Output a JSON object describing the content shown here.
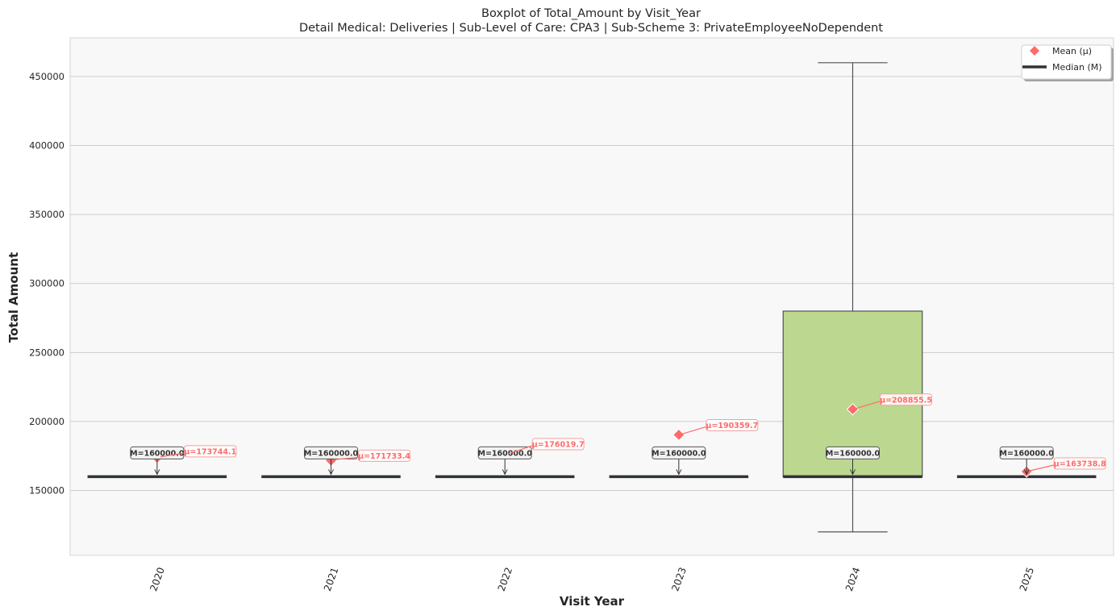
{
  "chart_data": {
    "type": "box",
    "title": "Boxplot of Total_Amount by Visit_Year",
    "subtitle": "Detail Medical: Deliveries | Sub-Level of Care: CPA3 | Sub-Scheme 3: PrivateEmployeeNoDependent",
    "xlabel": "Visit Year",
    "ylabel": "Total Amount",
    "ylim": [
      103000,
      478000
    ],
    "yticks": [
      150000,
      200000,
      250000,
      300000,
      350000,
      400000,
      450000
    ],
    "grid": true,
    "legend_position": "top-right",
    "legend": [
      {
        "label": "Mean (μ)",
        "marker": "diamond",
        "color": "#ff6b6b"
      },
      {
        "label": "Median (M)",
        "marker": "line",
        "color": "#2f3335"
      }
    ],
    "categories": [
      "2020",
      "2021",
      "2022",
      "2023",
      "2024",
      "2025"
    ],
    "boxes": [
      {
        "category": "2020",
        "whisker_low": 160000,
        "q1": 160000,
        "median": 160000,
        "q3": 160000,
        "whisker_high": 160000,
        "mean": 173744.1,
        "median_label": "M=160000.0",
        "mean_label": "μ=173744.1"
      },
      {
        "category": "2021",
        "whisker_low": 160000,
        "q1": 160000,
        "median": 160000,
        "q3": 160000,
        "whisker_high": 160000,
        "mean": 171733.4,
        "median_label": "M=160000.0",
        "mean_label": "μ=171733.4"
      },
      {
        "category": "2022",
        "whisker_low": 160000,
        "q1": 160000,
        "median": 160000,
        "q3": 160000,
        "whisker_high": 160000,
        "mean": 176019.7,
        "median_label": "M=160000.0",
        "mean_label": "μ=176019.7"
      },
      {
        "category": "2023",
        "whisker_low": 160000,
        "q1": 160000,
        "median": 160000,
        "q3": 160000,
        "whisker_high": 160000,
        "mean": 190359.7,
        "median_label": "M=160000.0",
        "mean_label": "μ=190359.7"
      },
      {
        "category": "2024",
        "whisker_low": 120000,
        "q1": 160000,
        "median": 160000,
        "q3": 280000,
        "whisker_high": 460000,
        "mean": 208855.5,
        "median_label": "M=160000.0",
        "mean_label": "μ=208855.5",
        "fill": "#bcd78f"
      },
      {
        "category": "2025",
        "whisker_low": 160000,
        "q1": 160000,
        "median": 160000,
        "q3": 160000,
        "whisker_high": 160000,
        "mean": 163738.8,
        "median_label": "M=160000.0",
        "mean_label": "μ=163738.8"
      }
    ],
    "colors": {
      "background": "#f8f8f8",
      "grid": "#cccccc",
      "median": "#2f3335",
      "mean": "#ff6b6b",
      "mean_text": "#ff6b6b",
      "box_edge": "#4d5554"
    }
  }
}
